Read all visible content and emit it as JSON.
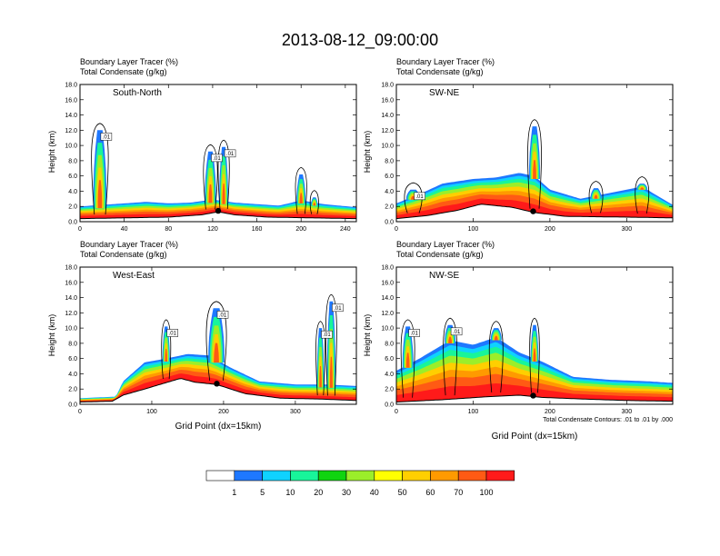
{
  "figure": {
    "title": "2013-08-12_09:00:00",
    "header_line1": "Boundary Layer Tracer   (%)",
    "header_line2": "Total Condensate   (g/kg)",
    "contour_note": "Total Condensate Contours: .01 to .01 by .000",
    "xlabel": "Grid Point (dx=15km)",
    "ylabel": "Height (km)"
  },
  "colors": {
    "levels": [
      "#ffffff",
      "#1e78ff",
      "#0fd2ff",
      "#18f59a",
      "#10d410",
      "#9bee2a",
      "#ffff00",
      "#ffcf00",
      "#ff9a00",
      "#ff5a14",
      "#ff1a1a"
    ],
    "terrain": "#ffffff",
    "contour": "#000000"
  },
  "colorbar": {
    "labels": [
      "1",
      "5",
      "10",
      "20",
      "30",
      "40",
      "50",
      "60",
      "70",
      "100"
    ]
  },
  "chart_data": [
    {
      "type": "heatmap",
      "name": "South-North",
      "xlim": [
        0,
        250
      ],
      "ylim": [
        0,
        18
      ],
      "x_ticks": [
        "0",
        "40",
        "80",
        "120",
        "160",
        "200",
        "240"
      ],
      "y_ticks": [
        "0.0",
        "2.0",
        "4.0",
        "6.0",
        "8.0",
        "10.0",
        "12.0",
        "14.0",
        "16.0",
        "18.0"
      ],
      "contour_labels": [
        ".01",
        ".01",
        ".01"
      ],
      "terrain": [
        [
          0,
          0.4
        ],
        [
          40,
          0.5
        ],
        [
          80,
          0.6
        ],
        [
          110,
          0.9
        ],
        [
          125,
          1.3
        ],
        [
          140,
          0.9
        ],
        [
          170,
          0.6
        ],
        [
          210,
          0.5
        ],
        [
          250,
          0.4
        ]
      ],
      "plume_top": [
        [
          0,
          2.0
        ],
        [
          20,
          2.2
        ],
        [
          40,
          2.4
        ],
        [
          60,
          2.6
        ],
        [
          80,
          2.4
        ],
        [
          100,
          2.5
        ],
        [
          120,
          2.9
        ],
        [
          140,
          2.5
        ],
        [
          160,
          2.3
        ],
        [
          180,
          2.1
        ],
        [
          200,
          2.8
        ],
        [
          220,
          2.3
        ],
        [
          250,
          1.9
        ]
      ],
      "convection": [
        {
          "x": 18,
          "top": 12.0,
          "width": 12
        },
        {
          "x": 118,
          "top": 9.2,
          "width": 10
        },
        {
          "x": 130,
          "top": 9.8,
          "width": 8
        },
        {
          "x": 200,
          "top": 6.2,
          "width": 8
        },
        {
          "x": 212,
          "top": 3.2,
          "width": 6
        }
      ]
    },
    {
      "type": "heatmap",
      "name": "SW-NE",
      "xlim": [
        0,
        360
      ],
      "ylim": [
        0,
        18
      ],
      "x_ticks": [
        "0",
        "100",
        "200",
        "300"
      ],
      "y_ticks": [
        "0.0",
        "2.0",
        "4.0",
        "6.0",
        "8.0",
        "10.0",
        "12.0",
        "14.0",
        "16.0",
        "18.0"
      ],
      "contour_labels": [
        ".01"
      ],
      "terrain": [
        [
          0,
          0.4
        ],
        [
          40,
          0.8
        ],
        [
          80,
          1.5
        ],
        [
          110,
          2.3
        ],
        [
          150,
          1.9
        ],
        [
          180,
          1.2
        ],
        [
          220,
          0.7
        ],
        [
          300,
          0.6
        ],
        [
          360,
          0.5
        ]
      ],
      "plume_top": [
        [
          0,
          2.4
        ],
        [
          30,
          3.6
        ],
        [
          60,
          5.0
        ],
        [
          100,
          5.6
        ],
        [
          130,
          5.8
        ],
        [
          160,
          6.4
        ],
        [
          180,
          6.0
        ],
        [
          200,
          4.2
        ],
        [
          240,
          3.0
        ],
        [
          280,
          3.8
        ],
        [
          320,
          4.6
        ],
        [
          360,
          2.2
        ]
      ],
      "convection": [
        {
          "x": 22,
          "top": 4.2,
          "width": 18
        },
        {
          "x": 180,
          "top": 12.5,
          "width": 14
        },
        {
          "x": 260,
          "top": 4.4,
          "width": 14
        },
        {
          "x": 320,
          "top": 5.0,
          "width": 14
        }
      ]
    },
    {
      "type": "heatmap",
      "name": "West-East",
      "xlim": [
        0,
        385
      ],
      "ylim": [
        0,
        18
      ],
      "x_ticks": [
        "0",
        "100",
        "200",
        "300"
      ],
      "y_ticks": [
        "0.0",
        "2.0",
        "4.0",
        "6.0",
        "8.0",
        "10.0",
        "12.0",
        "14.0",
        "16.0",
        "18.0"
      ],
      "contour_labels": [
        ".01",
        ".01",
        ".01",
        ".01"
      ],
      "terrain": [
        [
          0,
          0.3
        ],
        [
          45,
          0.4
        ],
        [
          60,
          1.2
        ],
        [
          90,
          2.0
        ],
        [
          140,
          3.4
        ],
        [
          160,
          2.9
        ],
        [
          190,
          2.6
        ],
        [
          230,
          1.4
        ],
        [
          280,
          0.8
        ],
        [
          330,
          0.7
        ],
        [
          385,
          0.5
        ]
      ],
      "plume_top": [
        [
          0,
          0.8
        ],
        [
          50,
          1.0
        ],
        [
          60,
          3.0
        ],
        [
          90,
          5.5
        ],
        [
          120,
          6.0
        ],
        [
          150,
          6.6
        ],
        [
          180,
          6.4
        ],
        [
          210,
          4.8
        ],
        [
          250,
          3.0
        ],
        [
          300,
          2.6
        ],
        [
          340,
          2.6
        ],
        [
          385,
          2.4
        ]
      ],
      "convection": [
        {
          "x": 120,
          "top": 10.2,
          "width": 10
        },
        {
          "x": 190,
          "top": 12.6,
          "width": 22
        },
        {
          "x": 335,
          "top": 10.0,
          "width": 10
        },
        {
          "x": 350,
          "top": 13.5,
          "width": 12
        }
      ]
    },
    {
      "type": "heatmap",
      "name": "NW-SE",
      "xlim": [
        0,
        360
      ],
      "ylim": [
        0,
        18
      ],
      "x_ticks": [
        "0",
        "100",
        "200",
        "300"
      ],
      "y_ticks": [
        "0.0",
        "2.0",
        "4.0",
        "6.0",
        "8.0",
        "10.0",
        "12.0",
        "14.0",
        "16.0",
        "18.0"
      ],
      "contour_labels": [
        ".01",
        ".01"
      ],
      "terrain": [
        [
          0,
          0.3
        ],
        [
          60,
          0.6
        ],
        [
          120,
          1.0
        ],
        [
          160,
          1.2
        ],
        [
          190,
          0.9
        ],
        [
          240,
          0.7
        ],
        [
          300,
          0.5
        ],
        [
          360,
          0.4
        ]
      ],
      "plume_top": [
        [
          0,
          4.4
        ],
        [
          30,
          6.0
        ],
        [
          70,
          8.4
        ],
        [
          100,
          7.8
        ],
        [
          130,
          8.8
        ],
        [
          160,
          6.8
        ],
        [
          190,
          5.6
        ],
        [
          230,
          3.6
        ],
        [
          280,
          3.2
        ],
        [
          330,
          3.0
        ],
        [
          360,
          2.8
        ]
      ],
      "convection": [
        {
          "x": 15,
          "top": 10.2,
          "width": 14
        },
        {
          "x": 70,
          "top": 10.4,
          "width": 14
        },
        {
          "x": 130,
          "top": 10.0,
          "width": 14
        },
        {
          "x": 180,
          "top": 10.4,
          "width": 10
        }
      ]
    }
  ]
}
